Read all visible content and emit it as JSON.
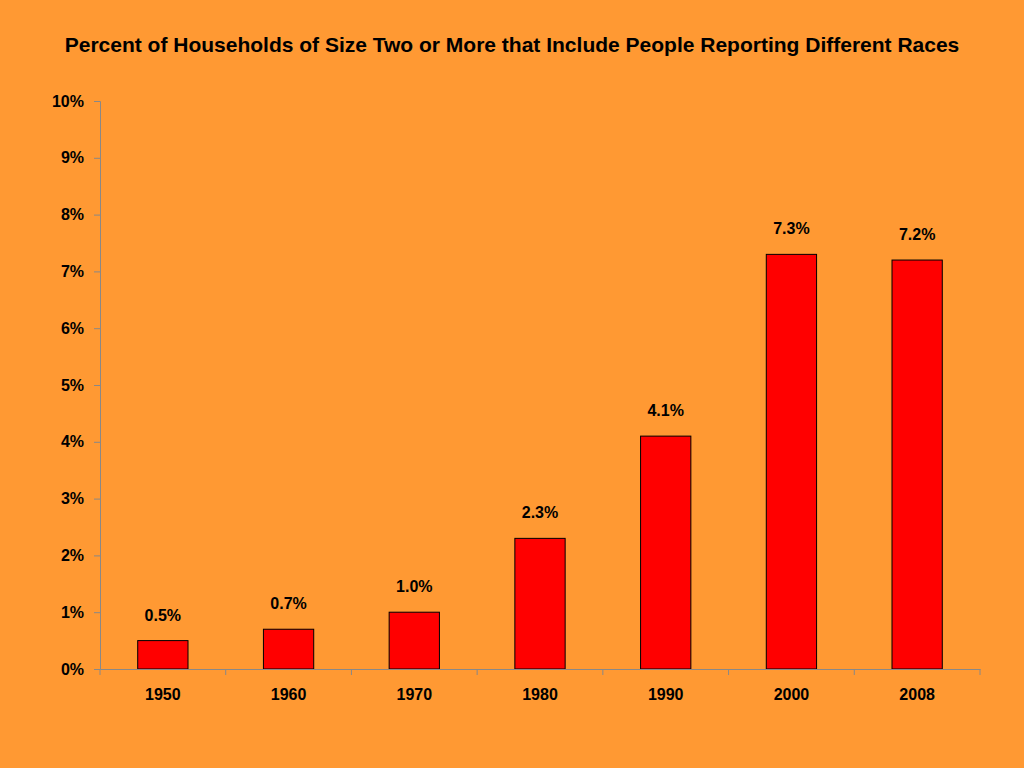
{
  "chart_data": {
    "type": "bar",
    "title": "Percent of Households of Size Two or More that Include People Reporting Different Races",
    "categories": [
      "1950",
      "1960",
      "1970",
      "1980",
      "1990",
      "2000",
      "2008"
    ],
    "values": [
      0.5,
      0.7,
      1.0,
      2.3,
      4.1,
      7.3,
      7.2
    ],
    "value_labels": [
      "0.5%",
      "0.7%",
      "1.0%",
      "2.3%",
      "4.1%",
      "7.3%",
      "7.2%"
    ],
    "color": "#ff0000",
    "ylim": [
      0,
      10
    ],
    "yticks": [
      {
        "value": 0,
        "label": "0%"
      },
      {
        "value": 1,
        "label": "1%"
      },
      {
        "value": 2,
        "label": "2%"
      },
      {
        "value": 3,
        "label": "3%"
      },
      {
        "value": 4,
        "label": "4%"
      },
      {
        "value": 5,
        "label": "5%"
      },
      {
        "value": 6,
        "label": "6%"
      },
      {
        "value": 7,
        "label": "7%"
      },
      {
        "value": 8,
        "label": "8%"
      },
      {
        "value": 9,
        "label": "9%"
      },
      {
        "value": 10,
        "label": "10%"
      }
    ],
    "grid": false,
    "data_labels": true
  }
}
